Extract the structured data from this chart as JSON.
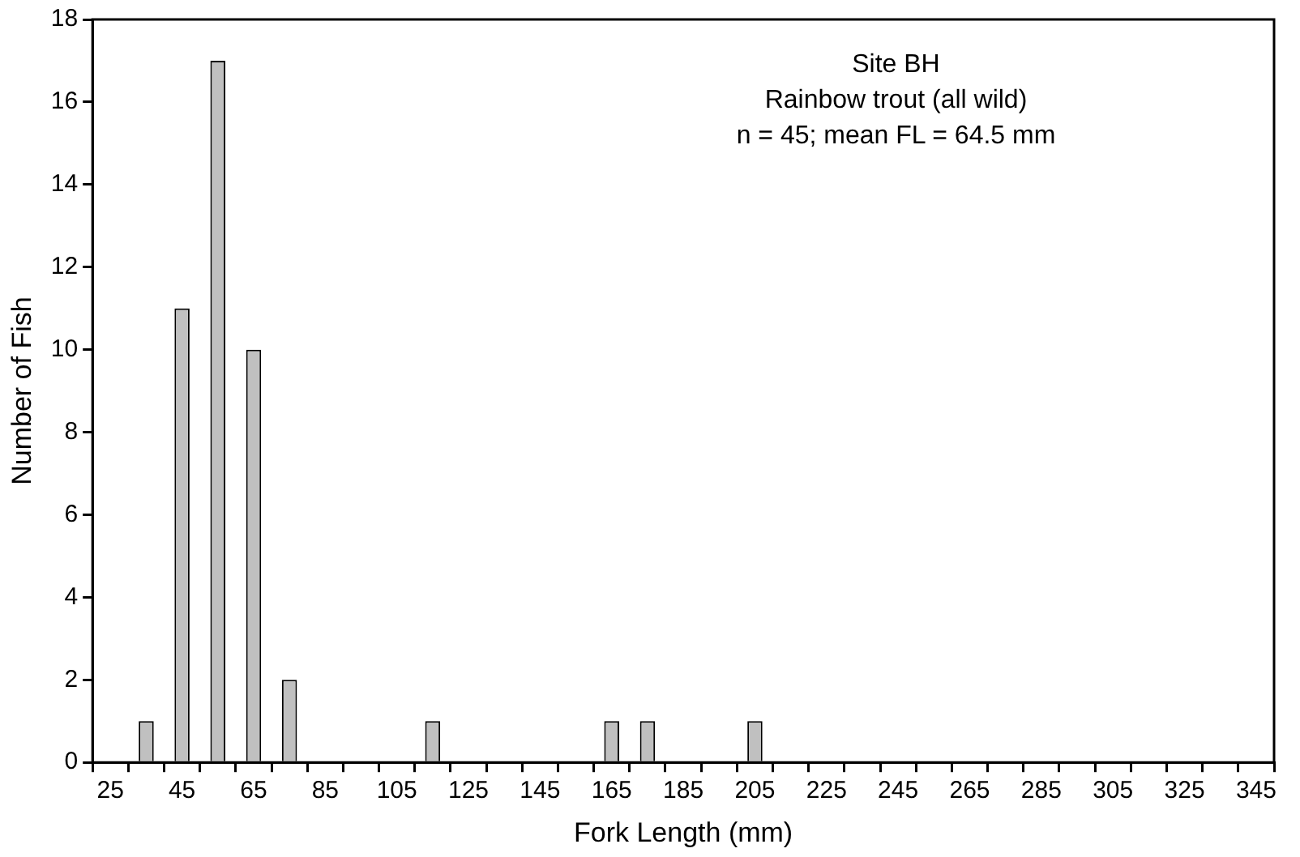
{
  "chart_data": {
    "type": "bar",
    "xlabel": "Fork Length (mm)",
    "ylabel": "Number of Fish",
    "categories": [
      "25",
      null,
      "45",
      null,
      "65",
      null,
      "85",
      null,
      "105",
      null,
      "125",
      null,
      "145",
      null,
      "165",
      null,
      "185",
      null,
      "205",
      null,
      "225",
      null,
      "245",
      null,
      "265",
      null,
      "285",
      null,
      "305",
      null,
      "325",
      null,
      "345"
    ],
    "values": [
      0,
      1,
      11,
      17,
      10,
      2,
      0,
      0,
      0,
      1,
      0,
      0,
      0,
      0,
      1,
      1,
      0,
      0,
      1,
      0,
      0,
      0,
      0,
      0,
      0,
      0,
      0,
      0,
      0,
      0,
      0,
      0,
      0
    ],
    "color": "#c0c0c0",
    "ylim": [
      0,
      18
    ],
    "yticks": [
      0,
      2,
      4,
      6,
      8,
      10,
      12,
      14,
      16,
      18
    ],
    "grid": false,
    "legend": false,
    "annotations": [
      "Site BH",
      "Rainbow trout (all wild)",
      "n = 45; mean FL = 64.5 mm"
    ]
  }
}
